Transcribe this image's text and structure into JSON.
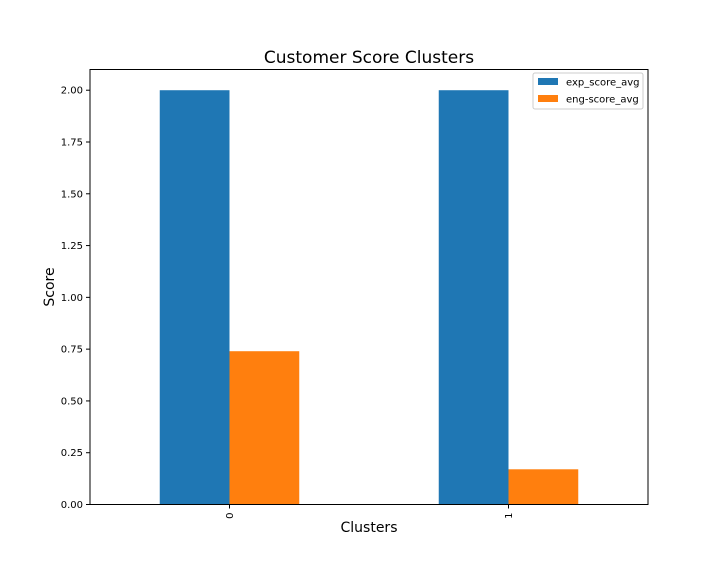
{
  "chart_data": {
    "type": "bar",
    "title": "Customer Score Clusters",
    "xlabel": "Clusters",
    "ylabel": "Score",
    "categories": [
      "0",
      "1"
    ],
    "series": [
      {
        "name": "exp_score_avg",
        "color": "#1f77b4",
        "values": [
          2.0,
          2.0
        ]
      },
      {
        "name": "eng-score_avg",
        "color": "#ff7f0e",
        "values": [
          0.74,
          0.17
        ]
      }
    ],
    "ylim": [
      0,
      2.1
    ],
    "yticks": [
      "0.00",
      "0.25",
      "0.50",
      "0.75",
      "1.00",
      "1.25",
      "1.50",
      "1.75",
      "2.00"
    ],
    "x_tick_rotation": "vertical",
    "grid": false,
    "legend_position": "top-right"
  }
}
